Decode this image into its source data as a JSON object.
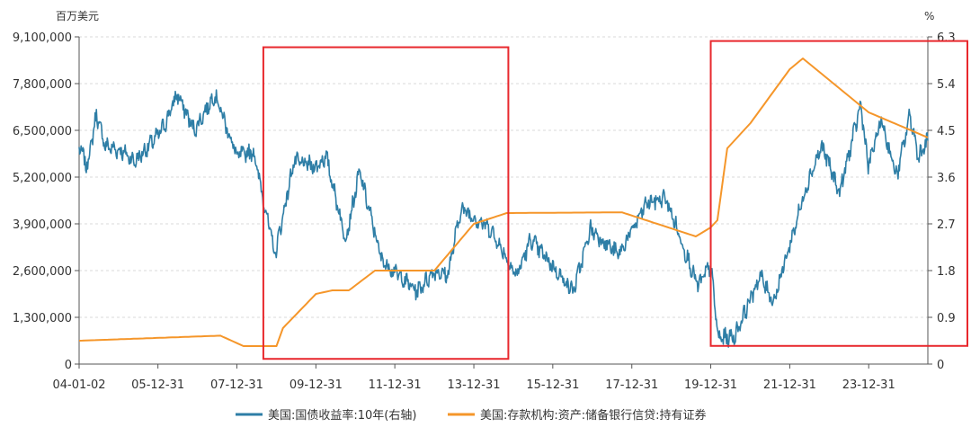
{
  "chart_data": {
    "type": "line",
    "left_unit": "百万美元",
    "right_unit": "%",
    "left_axis": {
      "min": 0,
      "max": 9100000,
      "ticks": [
        "0",
        "1,300,000",
        "2,600,000",
        "3,900,000",
        "5,200,000",
        "6,500,000",
        "7,800,000",
        "9,100,000"
      ],
      "tick_values": [
        0,
        1300000,
        2600000,
        3900000,
        5200000,
        6500000,
        7800000,
        9100000
      ]
    },
    "right_axis": {
      "min": 0,
      "max": 6.3,
      "ticks": [
        "0",
        "0.9",
        "1.8",
        "2.7",
        "3.6",
        "4.5",
        "5.4",
        "6.3"
      ],
      "tick_values": [
        0,
        0.9,
        1.8,
        2.7,
        3.6,
        4.5,
        5.4,
        6.3
      ]
    },
    "x_axis": {
      "min": "2004-01-02",
      "max": "2025-06-30",
      "ticks": [
        "04-01-02",
        "05-12-31",
        "07-12-31",
        "09-12-31",
        "11-12-31",
        "13-12-31",
        "15-12-31",
        "17-12-31",
        "19-12-31",
        "21-12-31",
        "23-12-31"
      ],
      "tick_dates": [
        "2004-01-02",
        "2005-12-31",
        "2007-12-31",
        "2009-12-31",
        "2011-12-31",
        "2013-12-31",
        "2015-12-31",
        "2017-12-31",
        "2019-12-31",
        "2021-12-31",
        "2023-12-31"
      ]
    },
    "series": [
      {
        "name": "美国:国债收益率:10年(右轴)",
        "axis": "right",
        "color": "#2e7ea6",
        "points": [
          [
            "2004-01-02",
            4.2
          ],
          [
            "2004-03-15",
            3.8
          ],
          [
            "2004-06-10",
            4.8
          ],
          [
            "2004-09-01",
            4.2
          ],
          [
            "2005-02-01",
            4.1
          ],
          [
            "2005-06-01",
            3.9
          ],
          [
            "2005-12-31",
            4.4
          ],
          [
            "2006-03-01",
            4.6
          ],
          [
            "2006-06-28",
            5.2
          ],
          [
            "2006-12-01",
            4.5
          ],
          [
            "2007-06-12",
            5.2
          ],
          [
            "2007-12-31",
            4.0
          ],
          [
            "2008-06-01",
            4.1
          ],
          [
            "2008-12-18",
            2.1
          ],
          [
            "2009-06-10",
            3.9
          ],
          [
            "2009-12-31",
            3.8
          ],
          [
            "2010-04-05",
            4.0
          ],
          [
            "2010-10-01",
            2.4
          ],
          [
            "2011-02-08",
            3.7
          ],
          [
            "2011-09-01",
            2.0
          ],
          [
            "2012-07-24",
            1.4
          ],
          [
            "2013-01-01",
            1.8
          ],
          [
            "2013-05-01",
            1.7
          ],
          [
            "2013-09-05",
            3.0
          ],
          [
            "2014-06-01",
            2.6
          ],
          [
            "2015-01-30",
            1.7
          ],
          [
            "2015-06-10",
            2.4
          ],
          [
            "2016-07-08",
            1.4
          ],
          [
            "2016-12-15",
            2.6
          ],
          [
            "2017-09-01",
            2.1
          ],
          [
            "2018-05-17",
            3.1
          ],
          [
            "2018-11-08",
            3.2
          ],
          [
            "2019-09-03",
            1.5
          ],
          [
            "2019-12-31",
            1.9
          ],
          [
            "2020-03-09",
            0.5
          ],
          [
            "2020-08-04",
            0.52
          ],
          [
            "2021-03-31",
            1.7
          ],
          [
            "2021-08-03",
            1.2
          ],
          [
            "2022-06-14",
            3.5
          ],
          [
            "2022-10-24",
            4.2
          ],
          [
            "2023-04-06",
            3.3
          ],
          [
            "2023-10-19",
            5.0
          ],
          [
            "2023-12-27",
            3.8
          ],
          [
            "2024-04-25",
            4.7
          ],
          [
            "2024-09-16",
            3.6
          ],
          [
            "2025-01-14",
            4.8
          ],
          [
            "2025-04-04",
            4.0
          ],
          [
            "2025-06-30",
            4.3
          ]
        ]
      },
      {
        "name": "美国:存款机构:资产:储备银行信贷:持有证券",
        "axis": "left",
        "color": "#f5962a",
        "points": [
          [
            "2004-01-02",
            650000
          ],
          [
            "2007-08-01",
            790000
          ],
          [
            "2008-03-01",
            500000
          ],
          [
            "2008-12-31",
            500000
          ],
          [
            "2009-03-01",
            1000000
          ],
          [
            "2009-12-31",
            1950000
          ],
          [
            "2010-06-01",
            2050000
          ],
          [
            "2010-11-01",
            2050000
          ],
          [
            "2011-06-30",
            2600000
          ],
          [
            "2012-12-31",
            2600000
          ],
          [
            "2013-12-31",
            3900000
          ],
          [
            "2014-10-31",
            4200000
          ],
          [
            "2017-10-01",
            4220000
          ],
          [
            "2019-08-15",
            3550000
          ],
          [
            "2019-12-31",
            3800000
          ],
          [
            "2020-03-01",
            4000000
          ],
          [
            "2020-06-01",
            6000000
          ],
          [
            "2021-01-01",
            6700000
          ],
          [
            "2021-12-31",
            8200000
          ],
          [
            "2022-05-01",
            8500000
          ],
          [
            "2023-12-31",
            7000000
          ],
          [
            "2025-06-30",
            6300000
          ]
        ]
      }
    ],
    "highlight_boxes": [
      {
        "from": "2008-09-01",
        "to": "2014-11-15",
        "y_from_pct": 0.1,
        "y_to_pct": 6.1
      },
      {
        "from": "2019-12-31",
        "to": "2025-06-30",
        "y_from_pct": 0.35,
        "y_to_pct": 6.22
      }
    ],
    "highlight_color": "#e8282d",
    "grid": "horizontal-dashed",
    "legend_position": "bottom"
  }
}
